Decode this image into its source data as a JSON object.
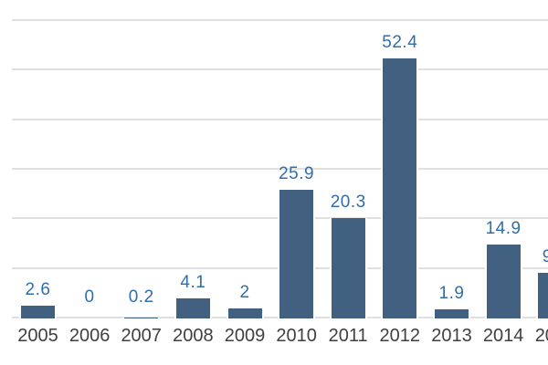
{
  "chart_data": {
    "type": "bar",
    "title": "",
    "xlabel": "",
    "ylabel": "",
    "legend": false,
    "grid": true,
    "y_axis_tick_labels_visible": false,
    "ylim": [
      0,
      60
    ],
    "gridline_step": 10,
    "categories": [
      "2005",
      "2006",
      "2007",
      "2008",
      "2009",
      "2010",
      "2011",
      "2012",
      "2013",
      "2014"
    ],
    "values": [
      2.6,
      0,
      0.2,
      4.1,
      2,
      25.9,
      20.3,
      52.4,
      1.9,
      14.9
    ],
    "data_labels": [
      "2.6",
      "0",
      "0.2",
      "4.1",
      "2",
      "25.9",
      "20.3",
      "52.4",
      "1.9",
      "14.9"
    ],
    "partial_bar_at_right_edge": {
      "visible_year_text": "20",
      "visible_value_text": "9",
      "estimated_value": 9.3
    },
    "colors": {
      "bar": "#426080",
      "value_label": "#2f6dac",
      "year_label": "#3f3f42",
      "gridline": "#e0e0e0",
      "background": "#ffffff"
    }
  }
}
